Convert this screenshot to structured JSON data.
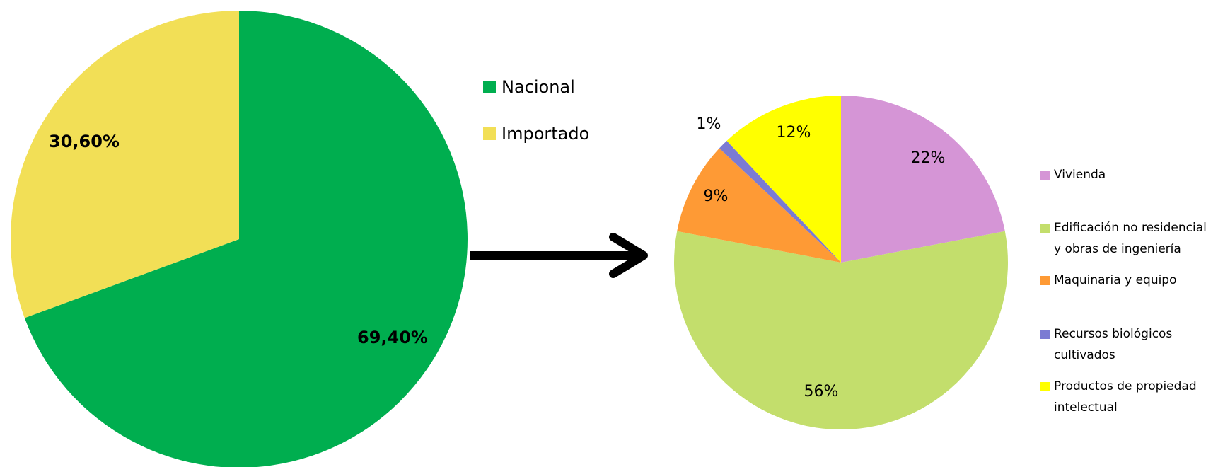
{
  "chart_data": [
    {
      "type": "pie",
      "categories": [
        "Nacional",
        "Importado"
      ],
      "values": [
        69.4,
        30.6
      ],
      "value_labels": [
        "69,40%",
        "30,60%"
      ],
      "colors": [
        "#00ae4f",
        "#f2df56"
      ]
    },
    {
      "type": "pie",
      "categories": [
        "Vivienda",
        "Edificación no residencial y obras de ingeniería",
        "Maquinaria y equipo",
        "Recursos biológicos cultivados",
        "Productos de propiedad intelectual"
      ],
      "values": [
        22,
        56,
        9,
        1,
        12
      ],
      "value_labels": [
        "22%",
        "56%",
        "9%",
        "1%",
        "12%"
      ],
      "colors": [
        "#d595d6",
        "#c3de6c",
        "#fe9a35",
        "#7b7bd3",
        "#ffff00"
      ]
    }
  ]
}
